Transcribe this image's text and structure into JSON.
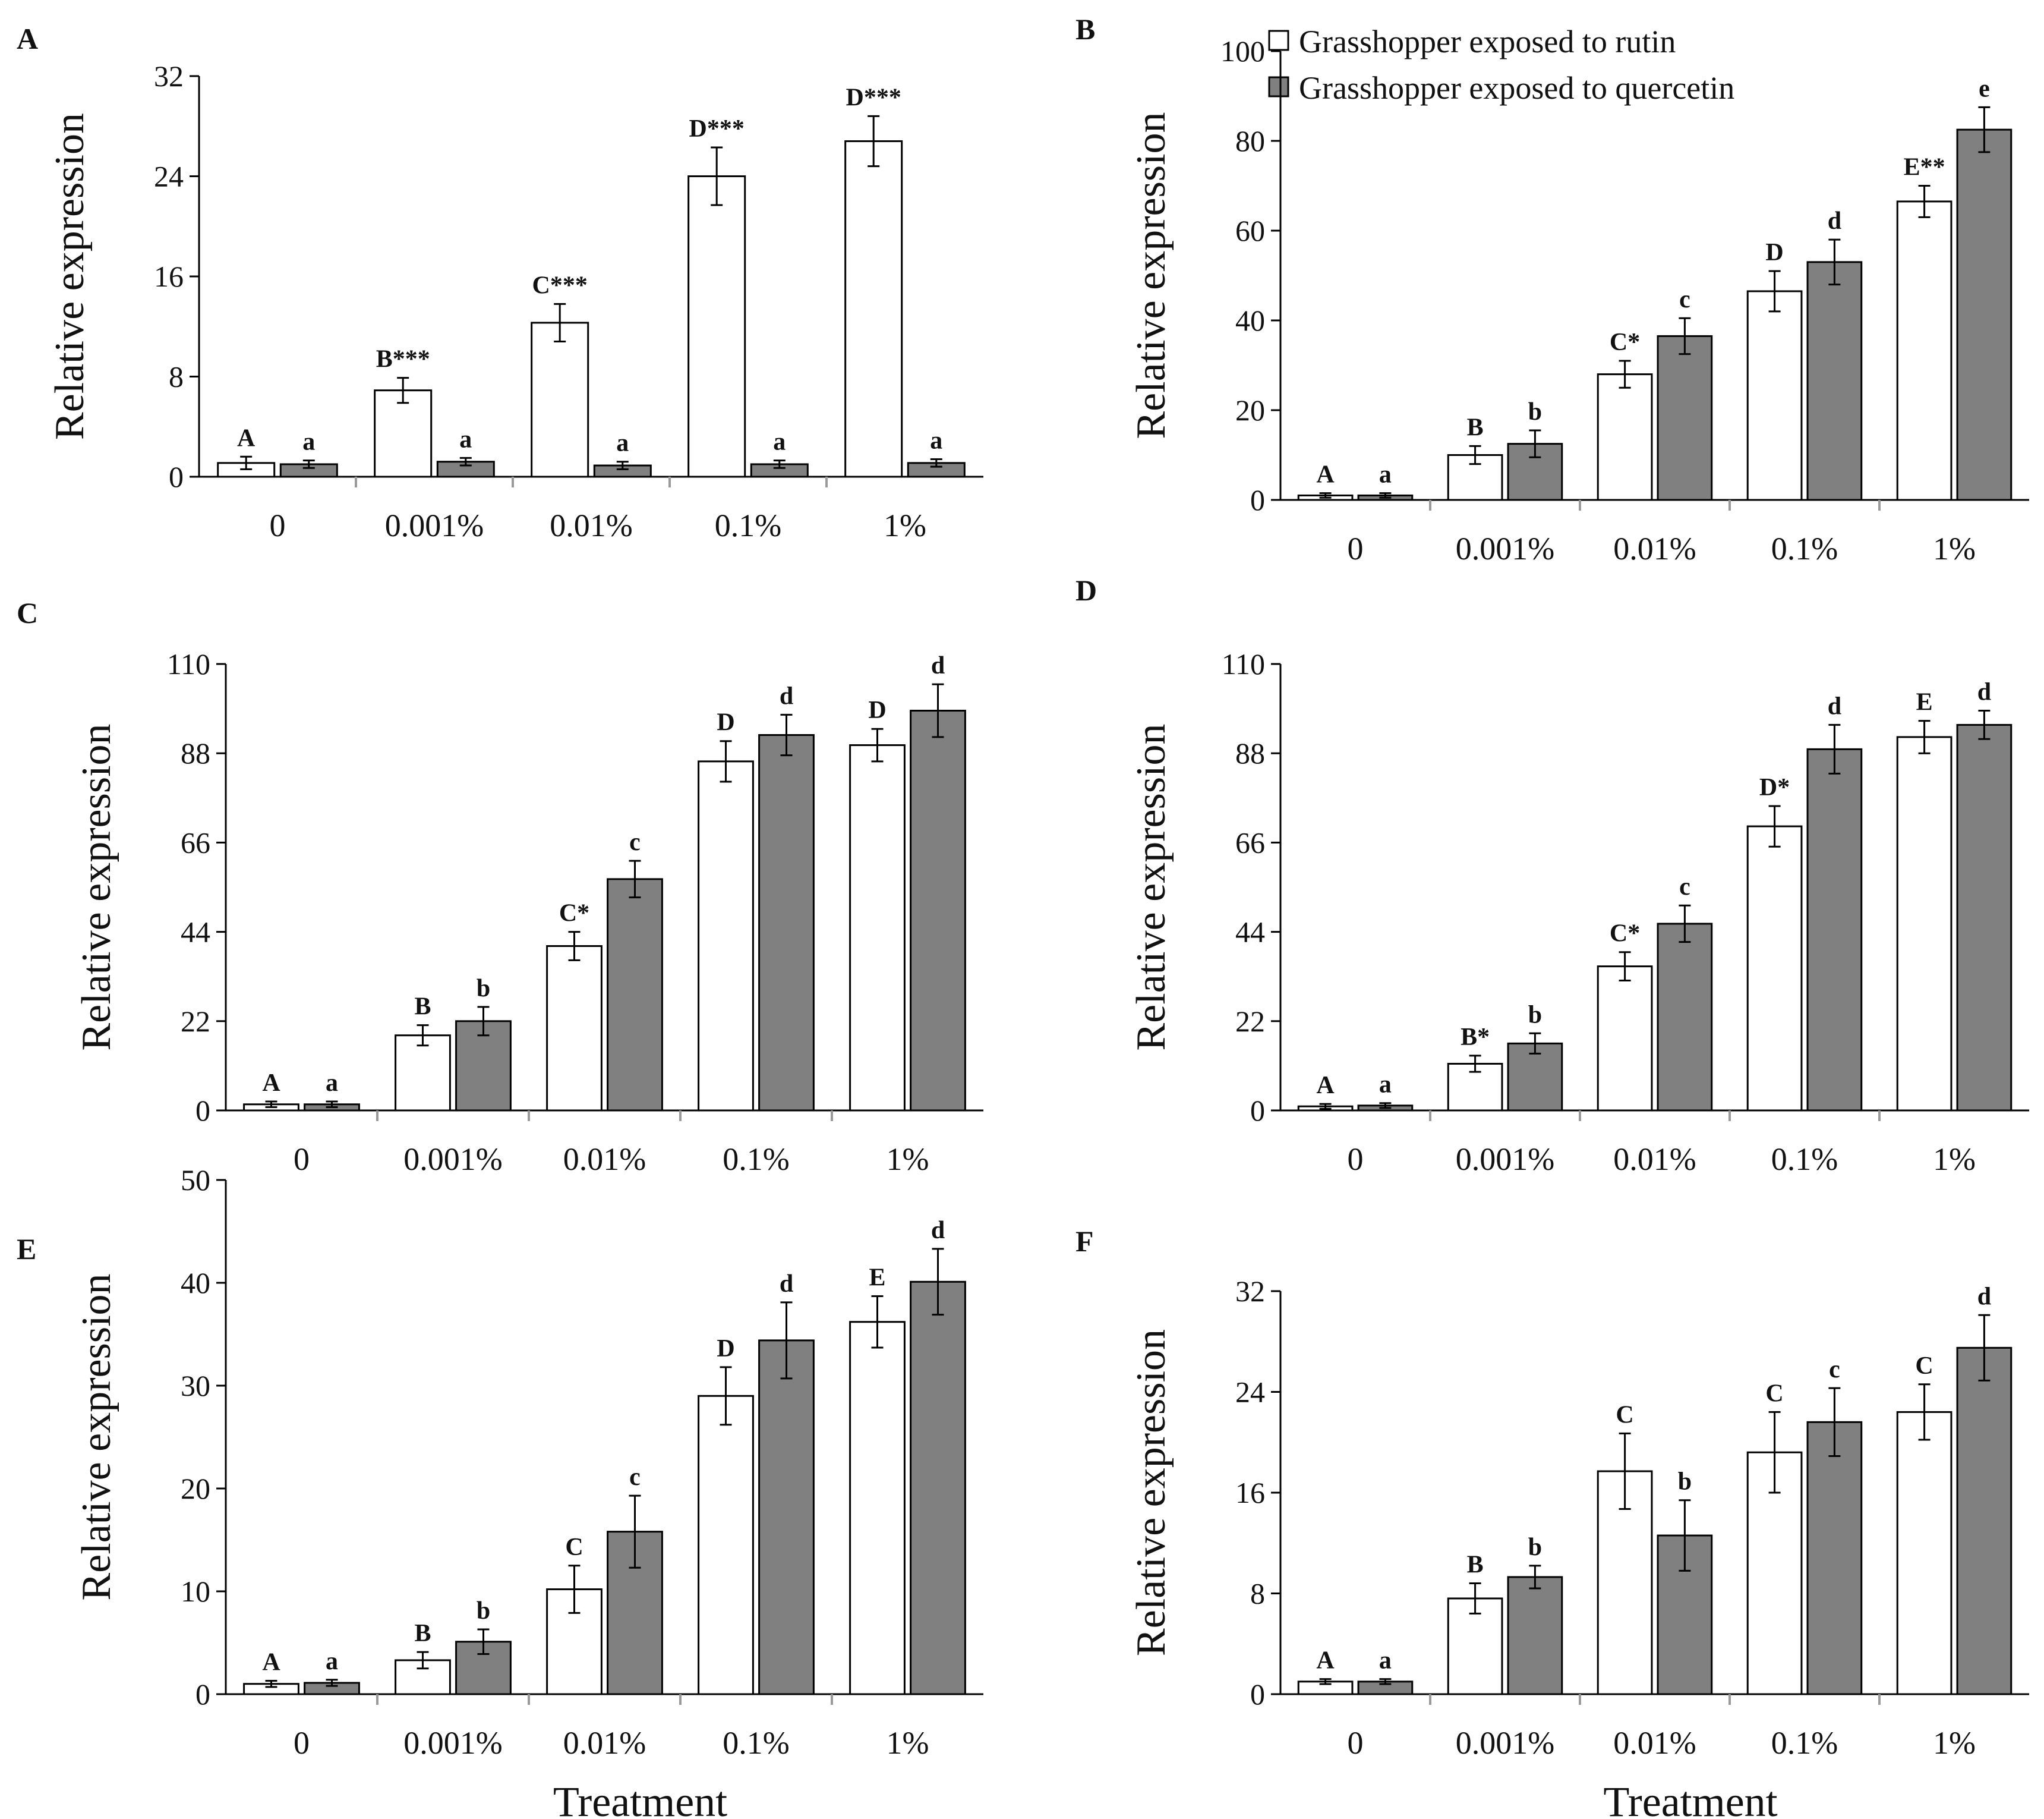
{
  "colors": {
    "rutin": "#ffffff",
    "quercetin": "#808080",
    "axis": "#000000"
  },
  "legend": [
    {
      "series": "rutin",
      "label": "Grasshopper exposed to rutin"
    },
    {
      "series": "quercetin",
      "label": "Grasshopper exposed to quercetin"
    }
  ],
  "chart_data": [
    {
      "type": "bar",
      "panel": "A",
      "categories": [
        "0",
        "0.001%",
        "0.01%",
        "0.1%",
        "1%"
      ],
      "xlabel": "",
      "ylabel": "Relative expression",
      "ylim": [
        0,
        32
      ],
      "yticks": [
        0,
        8,
        16,
        24,
        32
      ],
      "series": [
        {
          "key": "rutin",
          "values": [
            1.1,
            6.9,
            12.3,
            24.0,
            26.8
          ],
          "errors": [
            0.5,
            1.0,
            1.5,
            2.3,
            2.0
          ],
          "labels": [
            "A",
            "B***",
            "C***",
            "D***",
            "D***"
          ]
        },
        {
          "key": "quercetin",
          "values": [
            1.0,
            1.2,
            0.9,
            1.0,
            1.1
          ],
          "errors": [
            0.3,
            0.3,
            0.3,
            0.3,
            0.3
          ],
          "labels": [
            "a",
            "a",
            "a",
            "a",
            "a"
          ]
        }
      ]
    },
    {
      "type": "bar",
      "panel": "B",
      "categories": [
        "0",
        "0.001%",
        "0.01%",
        "0.1%",
        "1%"
      ],
      "xlabel": "",
      "ylabel": "Relative expression",
      "ylim": [
        0,
        100
      ],
      "yticks": [
        0,
        20,
        40,
        60,
        80,
        100
      ],
      "series": [
        {
          "key": "rutin",
          "values": [
            1.0,
            10.0,
            28.0,
            46.5,
            66.5
          ],
          "errors": [
            0.5,
            2.0,
            3.0,
            4.5,
            3.5
          ],
          "labels": [
            "A",
            "B",
            "C*",
            "D",
            "E**"
          ]
        },
        {
          "key": "quercetin",
          "values": [
            1.0,
            12.5,
            36.5,
            53.0,
            82.5
          ],
          "errors": [
            0.5,
            3.0,
            4.0,
            5.0,
            5.0
          ],
          "labels": [
            "a",
            "b",
            "c",
            "d",
            "e"
          ]
        }
      ]
    },
    {
      "type": "bar",
      "panel": "C",
      "categories": [
        "0",
        "0.001%",
        "0.01%",
        "0.1%",
        "1%"
      ],
      "xlabel": "",
      "ylabel": "Relative expression",
      "ylim": [
        0,
        110
      ],
      "yticks": [
        0,
        22,
        44,
        66,
        88,
        110
      ],
      "series": [
        {
          "key": "rutin",
          "values": [
            1.5,
            18.5,
            40.5,
            86.0,
            90.0
          ],
          "errors": [
            0.7,
            2.5,
            3.5,
            5.0,
            4.0
          ],
          "labels": [
            "A",
            "B",
            "C*",
            "D",
            "D"
          ]
        },
        {
          "key": "quercetin",
          "values": [
            1.5,
            22.0,
            57.0,
            92.5,
            98.5
          ],
          "errors": [
            0.7,
            3.5,
            4.5,
            5.0,
            6.5
          ],
          "labels": [
            "a",
            "b",
            "c",
            "d",
            "d"
          ]
        }
      ]
    },
    {
      "type": "bar",
      "panel": "D",
      "categories": [
        "0",
        "0.001%",
        "0.01%",
        "0.1%",
        "1%"
      ],
      "xlabel": "",
      "ylabel": "Relative expression",
      "ylim": [
        0,
        110
      ],
      "yticks": [
        0,
        22,
        44,
        66,
        88,
        110
      ],
      "series": [
        {
          "key": "rutin",
          "values": [
            1.0,
            11.5,
            35.5,
            70.0,
            92.0
          ],
          "errors": [
            0.6,
            2.0,
            3.5,
            5.0,
            4.0
          ],
          "labels": [
            "A",
            "B*",
            "C*",
            "D*",
            "E"
          ]
        },
        {
          "key": "quercetin",
          "values": [
            1.2,
            16.5,
            46.0,
            89.0,
            95.0
          ],
          "errors": [
            0.6,
            2.5,
            4.5,
            6.0,
            3.5
          ],
          "labels": [
            "a",
            "b",
            "c",
            "d",
            "d"
          ]
        }
      ]
    },
    {
      "type": "bar",
      "panel": "E",
      "categories": [
        "0",
        "0.001%",
        "0.01%",
        "0.1%",
        "1%"
      ],
      "xlabel": "Treatment",
      "ylabel": "Relative expression",
      "ylim": [
        0,
        50
      ],
      "yticks": [
        0,
        10,
        20,
        30,
        40,
        50
      ],
      "series": [
        {
          "key": "rutin",
          "values": [
            1.0,
            3.3,
            10.2,
            29.0,
            36.2
          ],
          "errors": [
            0.3,
            0.8,
            2.3,
            2.8,
            2.5
          ],
          "labels": [
            "A",
            "B",
            "C",
            "D",
            "E"
          ]
        },
        {
          "key": "quercetin",
          "values": [
            1.1,
            5.1,
            15.8,
            34.4,
            40.1
          ],
          "errors": [
            0.3,
            1.2,
            3.5,
            3.7,
            3.2
          ],
          "labels": [
            "a",
            "b",
            "c",
            "d",
            "d"
          ]
        }
      ]
    },
    {
      "type": "bar",
      "panel": "F",
      "categories": [
        "0",
        "0.001%",
        "0.01%",
        "0.1%",
        "1%"
      ],
      "xlabel": "Treatment",
      "ylabel": "Relative expression",
      "ylim": [
        0,
        32
      ],
      "yticks": [
        0,
        8,
        16,
        24,
        32
      ],
      "series": [
        {
          "key": "rutin",
          "values": [
            1.0,
            7.6,
            17.7,
            19.2,
            22.4
          ],
          "errors": [
            0.2,
            1.2,
            3.0,
            3.2,
            2.2
          ],
          "labels": [
            "A",
            "B",
            "C",
            "C",
            "C"
          ]
        },
        {
          "key": "quercetin",
          "values": [
            1.0,
            9.3,
            12.6,
            21.6,
            27.5
          ],
          "errors": [
            0.2,
            0.9,
            2.8,
            2.7,
            2.6
          ],
          "labels": [
            "a",
            "b",
            "b",
            "c",
            "d"
          ]
        }
      ]
    }
  ]
}
